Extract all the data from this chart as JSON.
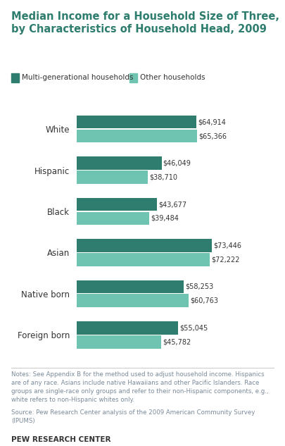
{
  "title": "Median Income for a Household Size of Three,\nby Characteristics of Household Head, 2009",
  "categories": [
    "White",
    "Hispanic",
    "Black",
    "Asian",
    "Native born",
    "Foreign born"
  ],
  "multi_gen": [
    64914,
    46049,
    43677,
    73446,
    58253,
    55045
  ],
  "other": [
    65366,
    38710,
    39484,
    72222,
    60763,
    45782
  ],
  "multi_gen_labels": [
    "$64,914",
    "$46,049",
    "$43,677",
    "$73,446",
    "$58,253",
    "$55,045"
  ],
  "other_labels": [
    "$65,366",
    "$38,710",
    "$39,484",
    "$72,222",
    "$60,763",
    "$45,782"
  ],
  "color_multi": "#2e7d6e",
  "color_other": "#6ec4b0",
  "xlim": [
    0,
    90000
  ],
  "bar_height": 0.32,
  "legend_labels": [
    "Multi-generational households",
    "Other households"
  ],
  "notes": "Notes: See Appendix B for the method used to adjust household income. Hispanics\nare of any race. Asians include native Hawaiians and other Pacific Islanders. Race\ngroups are single-race only groups and refer to their non-Hispanic components, e.g.,\nwhite refers to non-Hispanic whites only.",
  "source": "Source: Pew Research Center analysis of the 2009 American Community Survey\n(IPUMS)",
  "branding": "PEW RESEARCH CENTER",
  "bg_color": "#ffffff",
  "title_color": "#2e7d6e",
  "notes_color": "#7a8a9a",
  "source_color": "#7a8a9a",
  "label_color": "#333333",
  "cat_label_color": "#333333"
}
